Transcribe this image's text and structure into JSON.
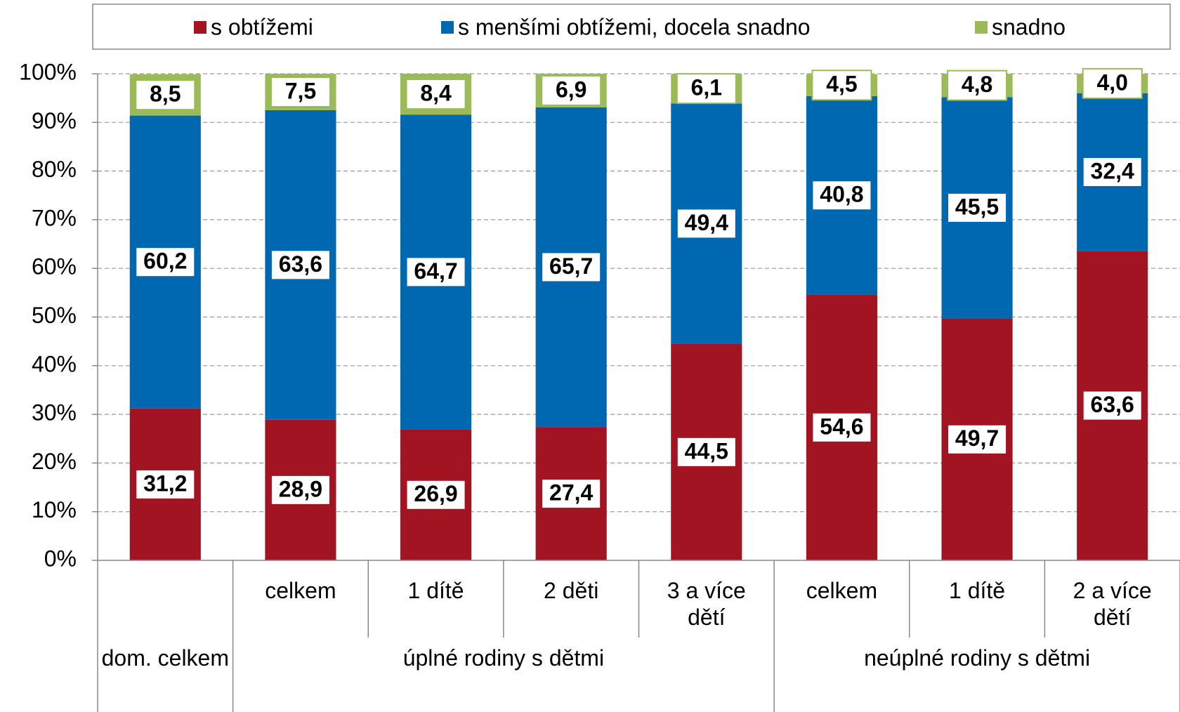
{
  "chart_data": {
    "type": "stacked_bar",
    "categories": [
      null,
      "celkem",
      "1 dítě",
      "2 děti",
      "3 a více dětí",
      "celkem",
      "1 dítě",
      "2 a více dětí"
    ],
    "groups": [
      {
        "label": "dom. celkem",
        "span": 1
      },
      {
        "label": "úplné rodiny s dětmi",
        "span": 4
      },
      {
        "label": "neúplné rodiny s dětmi",
        "span": 3
      }
    ],
    "series": [
      {
        "name": "s obtížemi",
        "color": "#a31422",
        "values": [
          31.2,
          28.9,
          26.9,
          27.4,
          44.5,
          54.6,
          49.7,
          63.6
        ],
        "value_labels": [
          "31,2",
          "28,9",
          "26,9",
          "27,4",
          "44,5",
          "54,6",
          "49,7",
          "63,6"
        ]
      },
      {
        "name": "s menšími obtížemi, docela snadno",
        "color": "#0068b0",
        "values": [
          60.2,
          63.6,
          64.7,
          65.7,
          49.4,
          40.8,
          45.5,
          32.4
        ],
        "value_labels": [
          "60,2",
          "63,6",
          "64,7",
          "65,7",
          "49,4",
          "40,8",
          "45,5",
          "32,4"
        ]
      },
      {
        "name": "snadno",
        "color": "#9bbb59",
        "values": [
          8.5,
          7.5,
          8.4,
          6.9,
          6.1,
          4.5,
          4.8,
          4.0
        ],
        "value_labels": [
          "8,5",
          "7,5",
          "8,4",
          "6,9",
          "6,1",
          "4,5",
          "4,8",
          "4,0"
        ]
      }
    ],
    "ylim": [
      0,
      100
    ],
    "yticks": [
      {
        "value": 0,
        "label": "0%"
      },
      {
        "value": 10,
        "label": "10%"
      },
      {
        "value": 20,
        "label": "20%"
      },
      {
        "value": 30,
        "label": "30%"
      },
      {
        "value": 40,
        "label": "40%"
      },
      {
        "value": 50,
        "label": "50%"
      },
      {
        "value": 60,
        "label": "60%"
      },
      {
        "value": 70,
        "label": "70%"
      },
      {
        "value": 80,
        "label": "80%"
      },
      {
        "value": 90,
        "label": "90%"
      },
      {
        "value": 100,
        "label": "100%"
      }
    ],
    "grid": true,
    "legend": "top"
  }
}
